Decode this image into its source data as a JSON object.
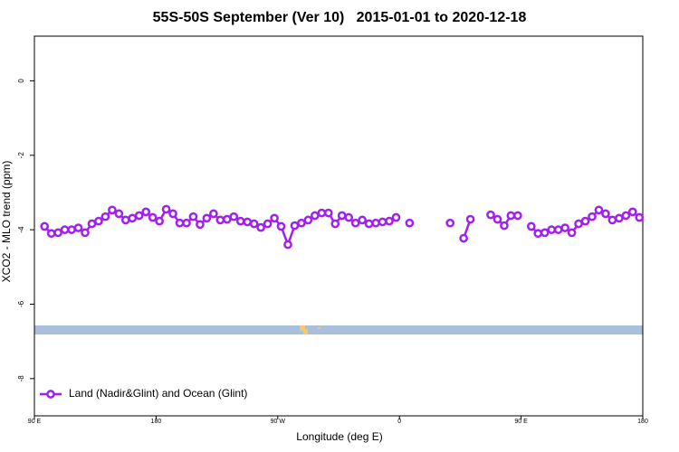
{
  "chart_data": {
    "type": "line",
    "title": "55S-50S September (Ver 10)   2015-01-01 to 2020-12-18",
    "xlabel": "Longitude (deg E)",
    "ylabel": "XCO2 - MLO trend (ppm)",
    "xlim": [
      90,
      540
    ],
    "ylim": [
      -9.0,
      1.2
    ],
    "xticks": [
      {
        "value": 90,
        "label": "90 E"
      },
      180,
      {
        "value": 270,
        "label": "90 W"
      },
      {
        "value": 360,
        "label": "0"
      },
      {
        "value": 450,
        "label": "90 E"
      },
      {
        "value": 540,
        "label": "180"
      }
    ],
    "yticks": [
      0,
      -2,
      -4,
      -6,
      -8
    ],
    "legend": "bottom-left",
    "x": [
      97.5,
      102.5,
      107.5,
      112.5,
      117.5,
      122.5,
      127.5,
      132.5,
      137.5,
      142.5,
      147.5,
      152.5,
      157.5,
      162.5,
      167.5,
      172.5,
      177.5,
      182.5,
      187.5,
      192.5,
      197.5,
      202.5,
      207.5,
      212.5,
      217.5,
      222.5,
      227.5,
      232.5,
      237.5,
      242.5,
      247.5,
      252.5,
      257.5,
      262.5,
      267.5,
      272.5,
      277.5,
      282.5,
      287.5,
      292.5,
      297.5,
      302.5,
      307.5,
      312.5,
      317.5,
      322.5,
      327.5,
      332.5,
      337.5,
      342.5,
      347.5,
      352.5,
      357.5,
      362.5,
      367.5,
      372.5,
      377.5,
      382.5,
      387.5,
      392.5,
      397.5,
      402.5,
      407.5,
      412.5,
      417.5,
      422.5,
      427.5,
      432.5,
      437.5,
      442.5,
      447.5,
      452.5,
      457.5,
      462.5,
      467.5,
      472.5,
      477.5,
      482.5,
      487.5,
      492.5,
      497.5,
      502.5,
      507.5,
      512.5,
      517.5,
      522.5,
      527.5,
      532.5,
      537.5
    ],
    "series": [
      {
        "name": "Land (Nadir&Glint) and Ocean (Glint)",
        "color": "#a020f0",
        "values": [
          -3.91,
          -4.1,
          -4.08,
          -4.0,
          -4.0,
          -3.95,
          -4.08,
          -3.84,
          -3.77,
          -3.65,
          -3.47,
          -3.57,
          -3.74,
          -3.69,
          -3.62,
          -3.52,
          -3.67,
          -3.77,
          -3.45,
          -3.57,
          -3.82,
          -3.82,
          -3.65,
          -3.86,
          -3.69,
          -3.57,
          -3.74,
          -3.72,
          -3.65,
          -3.77,
          -3.79,
          -3.84,
          -3.94,
          -3.84,
          -3.69,
          -3.91,
          -4.4,
          -3.89,
          -3.82,
          -3.74,
          -3.62,
          -3.55,
          -3.55,
          -3.84,
          -3.62,
          -3.67,
          -3.82,
          -3.74,
          -3.84,
          -3.82,
          -3.79,
          -3.77,
          -3.67,
          null,
          -3.82,
          null,
          null,
          null,
          null,
          null,
          -3.82,
          null,
          -4.23,
          -3.72,
          null,
          null,
          -3.6,
          -3.72,
          -3.89,
          -3.62,
          -3.62,
          null,
          -3.91,
          -4.1,
          -4.08,
          -4.0,
          -4.0,
          -3.95,
          -4.08,
          -3.84,
          -3.77,
          -3.65,
          -3.47,
          -3.57,
          -3.74,
          -3.69,
          -3.62,
          -3.52,
          -3.67
        ]
      }
    ]
  }
}
